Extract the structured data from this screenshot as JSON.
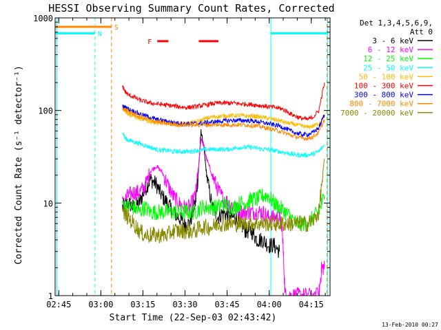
{
  "chart_data": {
    "type": "line",
    "title": "HESSI Observing Summary Count Rates, Corrected",
    "xlabel": "Start Time (22-Sep-03 02:43:42)",
    "ylabel": "Corrected Count Rate (s⁻¹ detector⁻¹)",
    "footer": "13-Feb-2010 00:27",
    "x_unit": "minutes after 02:43:42",
    "xlim": [
      0,
      98
    ],
    "ylim": [
      1,
      1000
    ],
    "y_scale": "log",
    "x_ticks": [
      {
        "label": "02:45",
        "x": 1.3
      },
      {
        "label": "03:00",
        "x": 16.3
      },
      {
        "label": "03:15",
        "x": 31.3
      },
      {
        "label": "03:30",
        "x": 46.3
      },
      {
        "label": "03:45",
        "x": 61.3
      },
      {
        "label": "04:00",
        "x": 76.3
      },
      {
        "label": "04:15",
        "x": 91.3
      }
    ],
    "y_ticks": [
      {
        "label": "1",
        "y": 1
      },
      {
        "label": "10",
        "y": 10
      },
      {
        "label": "100",
        "y": 100
      },
      {
        "label": "1000",
        "y": 1000
      }
    ],
    "legend": {
      "position": "top-right",
      "header": [
        "Det 1,3,4,5,6,9,",
        "Att 0"
      ]
    },
    "series": [
      {
        "name": "3 - 6 keV",
        "color": "#000000",
        "x": [
          24,
          26,
          28,
          30,
          32,
          34,
          36,
          38,
          40,
          42,
          44,
          46,
          48,
          50,
          51,
          52,
          53,
          54,
          56,
          58,
          60,
          62,
          64,
          66,
          68,
          70,
          72,
          74,
          76,
          78,
          80
        ],
        "y": [
          9,
          10,
          9,
          10,
          14,
          18,
          16,
          12,
          10,
          8,
          7,
          6,
          6,
          10,
          20,
          60,
          40,
          20,
          9,
          7,
          8,
          7,
          7,
          6,
          5,
          5,
          4,
          4,
          3.5,
          3.5,
          3
        ]
      },
      {
        "name": "6 - 12 keV",
        "color": "#ff00ff",
        "x": [
          24,
          26,
          28,
          30,
          32,
          34,
          36,
          38,
          40,
          42,
          44,
          46,
          48,
          50,
          51,
          52,
          53,
          54,
          56,
          58,
          60,
          62,
          64,
          66,
          68,
          70,
          72,
          74,
          76,
          78,
          80,
          81,
          82,
          84,
          86,
          88,
          90,
          94,
          95,
          96
        ],
        "y": [
          10,
          12,
          13,
          13,
          15,
          22,
          25,
          22,
          16,
          12,
          10,
          9,
          9,
          12,
          22,
          50,
          42,
          30,
          20,
          14,
          11,
          10,
          9,
          8,
          8,
          8,
          8,
          8,
          7,
          7,
          7,
          5,
          1,
          1,
          1,
          1,
          1,
          1,
          2,
          2
        ]
      },
      {
        "name": "12 - 25 keV",
        "color": "#00ff00",
        "x": [
          24,
          26,
          28,
          30,
          32,
          34,
          36,
          38,
          40,
          42,
          44,
          46,
          48,
          50,
          52,
          54,
          56,
          58,
          60,
          62,
          64,
          66,
          68,
          70,
          72,
          74,
          76,
          78,
          80,
          82,
          84,
          86,
          88,
          90,
          92,
          94,
          96
        ],
        "y": [
          10,
          9,
          9,
          8,
          9,
          8,
          8,
          8,
          8,
          8,
          8,
          8,
          8,
          8,
          9,
          9,
          9,
          9,
          10,
          9,
          9,
          10,
          10,
          11,
          11,
          12,
          12,
          10,
          9,
          8,
          7,
          6,
          6,
          6,
          7,
          8,
          12
        ]
      },
      {
        "name": "25 - 50 keV",
        "color": "#00ffff",
        "x": [
          24,
          25,
          26,
          28,
          30,
          32,
          34,
          36,
          38,
          40,
          42,
          44,
          46,
          48,
          50,
          52,
          54,
          56,
          58,
          60,
          62,
          64,
          66,
          68,
          70,
          72,
          74,
          76,
          78,
          80,
          82,
          84,
          86,
          88,
          90,
          92,
          94,
          96
        ],
        "y": [
          60,
          50,
          48,
          46,
          44,
          42,
          40,
          38,
          37,
          37,
          36,
          36,
          36,
          36,
          37,
          37,
          38,
          38,
          38,
          38,
          38,
          39,
          40,
          40,
          40,
          39,
          38,
          38,
          37,
          36,
          35,
          34,
          33,
          33,
          33,
          34,
          36,
          42
        ]
      },
      {
        "name": "50 - 100 keV",
        "color": "#ffbb00",
        "x": [
          24,
          25,
          26,
          28,
          30,
          32,
          34,
          36,
          38,
          40,
          42,
          44,
          46,
          48,
          50,
          52,
          54,
          56,
          58,
          60,
          62,
          64,
          66,
          68,
          70,
          72,
          74,
          76,
          78,
          80,
          82,
          84,
          86,
          88,
          90,
          92,
          94,
          96
        ],
        "y": [
          110,
          100,
          92,
          87,
          82,
          78,
          76,
          74,
          73,
          72,
          72,
          72,
          72,
          73,
          75,
          78,
          82,
          85,
          86,
          87,
          88,
          88,
          88,
          87,
          87,
          86,
          84,
          82,
          80,
          78,
          74,
          72,
          70,
          68,
          66,
          68,
          72,
          90
        ]
      },
      {
        "name": "100 - 300 keV",
        "color": "#ff0000",
        "x": [
          24,
          25,
          26,
          28,
          30,
          32,
          34,
          36,
          38,
          40,
          42,
          44,
          46,
          48,
          50,
          52,
          54,
          56,
          58,
          60,
          62,
          64,
          66,
          68,
          70,
          72,
          74,
          76,
          78,
          80,
          82,
          84,
          86,
          88,
          90,
          92,
          94,
          96
        ],
        "y": [
          180,
          160,
          148,
          140,
          130,
          125,
          120,
          118,
          116,
          114,
          112,
          110,
          108,
          108,
          110,
          112,
          115,
          118,
          120,
          120,
          120,
          120,
          118,
          117,
          116,
          114,
          112,
          110,
          108,
          106,
          100,
          92,
          86,
          82,
          80,
          85,
          100,
          200
        ]
      },
      {
        "name": "300 - 800 keV",
        "color": "#0000ff",
        "x": [
          24,
          25,
          26,
          28,
          30,
          32,
          34,
          36,
          38,
          40,
          42,
          44,
          46,
          48,
          50,
          52,
          54,
          56,
          58,
          60,
          62,
          64,
          66,
          68,
          70,
          72,
          74,
          76,
          78,
          80,
          82,
          84,
          86,
          88,
          90,
          92,
          94,
          96
        ],
        "y": [
          110,
          108,
          104,
          98,
          92,
          88,
          84,
          80,
          78,
          76,
          74,
          73,
          72,
          72,
          72,
          73,
          74,
          75,
          76,
          77,
          78,
          78,
          78,
          78,
          77,
          76,
          74,
          72,
          70,
          68,
          64,
          60,
          57,
          55,
          55,
          58,
          65,
          90
        ]
      },
      {
        "name": "800 - 7000 keV",
        "color": "#ff8800",
        "x": [
          24,
          25,
          26,
          28,
          30,
          32,
          34,
          36,
          38,
          40,
          42,
          44,
          46,
          48,
          50,
          52,
          54,
          56,
          58,
          60,
          62,
          64,
          66,
          68,
          70,
          72,
          74,
          76,
          78,
          80,
          82,
          84,
          86,
          88,
          90,
          92,
          94,
          96
        ],
        "y": [
          105,
          102,
          98,
          92,
          86,
          82,
          78,
          76,
          74,
          72,
          71,
          70,
          70,
          70,
          70,
          70,
          70,
          70,
          70,
          70,
          70,
          70,
          70,
          70,
          69,
          68,
          66,
          64,
          62,
          60,
          57,
          54,
          52,
          50,
          50,
          52,
          58,
          80
        ]
      },
      {
        "name": "7000 - 20000 keV",
        "color": "#888800",
        "x": [
          24,
          26,
          28,
          30,
          32,
          34,
          36,
          38,
          40,
          42,
          44,
          46,
          48,
          50,
          52,
          54,
          56,
          58,
          60,
          62,
          64,
          66,
          68,
          70,
          72,
          74,
          76,
          78,
          80,
          82,
          84,
          86,
          88,
          90,
          92,
          94,
          96
        ],
        "y": [
          8,
          7,
          6,
          5,
          4.5,
          4.5,
          4.5,
          4.5,
          4.5,
          5,
          5,
          5,
          5,
          5,
          5.5,
          5.5,
          5.5,
          6,
          6,
          6,
          6,
          6,
          6,
          6,
          6,
          6,
          6,
          6,
          6,
          6,
          6,
          6,
          6,
          6,
          6.5,
          8,
          30
        ]
      }
    ],
    "annotations": [
      {
        "type": "vline",
        "x": 20.1,
        "color": "#ff8800",
        "style": "dashed"
      },
      {
        "type": "vline",
        "x": 14.2,
        "color": "#00ffff",
        "style": "dashed"
      },
      {
        "type": "vline",
        "x": 0.6,
        "color": "#00ffff",
        "style": "solid"
      },
      {
        "type": "vline",
        "x": 76.9,
        "color": "#00ffff",
        "style": "solid"
      },
      {
        "type": "vline",
        "x": 97.2,
        "color": "#00ffff",
        "style": "solid"
      },
      {
        "type": "vline",
        "x": 96.9,
        "color": "#ff8800",
        "style": "dashed"
      },
      {
        "type": "bar",
        "label": "S",
        "x0": 0.2,
        "x1": 20.1,
        "y": 800,
        "color": "#ff8800"
      },
      {
        "type": "bar",
        "label": "N",
        "x0": 0.2,
        "x1": 14.2,
        "y": 680,
        "color": "#00ffff"
      },
      {
        "type": "bar",
        "label": "",
        "x0": 77.0,
        "x1": 97.2,
        "y": 680,
        "color": "#00ffff"
      },
      {
        "type": "bar",
        "label": "F",
        "x0": 36.4,
        "x1": 40.4,
        "y": 560,
        "color": "#ff0000"
      },
      {
        "type": "bar",
        "label": "",
        "x0": 51.2,
        "x1": 58.2,
        "y": 560,
        "color": "#ff0000"
      }
    ]
  }
}
